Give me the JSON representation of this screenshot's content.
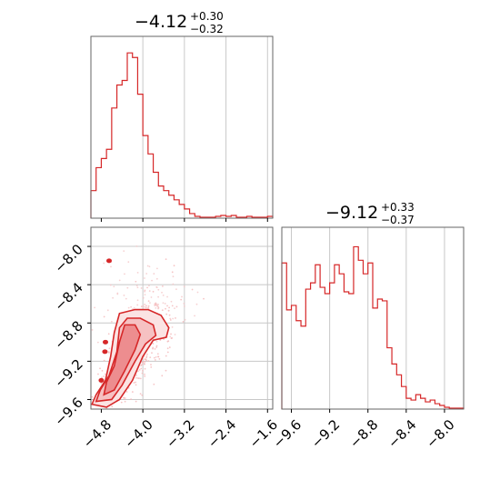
{
  "chart_data": [
    {
      "type": "histogram",
      "panel": "top-left",
      "title": {
        "median": "−4.12",
        "plus": "+0.30",
        "minus": "−0.32"
      },
      "xlim": [
        -5.0,
        -1.5
      ],
      "x": [
        -4.95,
        -4.85,
        -4.75,
        -4.65,
        -4.55,
        -4.45,
        -4.35,
        -4.25,
        -4.15,
        -4.05,
        -3.95,
        -3.85,
        -3.75,
        -3.65,
        -3.55,
        -3.45,
        -3.35,
        -3.25,
        -3.15,
        -3.05,
        -2.95,
        -2.85,
        -2.75,
        -2.65,
        -2.55,
        -2.45,
        -2.35,
        -2.25,
        -2.15,
        -2.05,
        -1.95,
        -1.85,
        -1.75,
        -1.65,
        -1.55
      ],
      "values": [
        30,
        55,
        65,
        75,
        120,
        145,
        150,
        180,
        175,
        135,
        90,
        70,
        50,
        35,
        30,
        25,
        20,
        15,
        10,
        5,
        2,
        1,
        1,
        1,
        2,
        3,
        2,
        3,
        1,
        1,
        2,
        1,
        1,
        1,
        2
      ],
      "grid_x": [
        -4.0,
        -3.2,
        -2.4,
        -1.6
      ]
    },
    {
      "type": "scatter",
      "panel": "bottom-left",
      "xlim": [
        -5.0,
        -1.5
      ],
      "ylim": [
        -9.7,
        -7.8
      ],
      "xticks": [
        "−4.8",
        "−4.0",
        "−3.2",
        "−2.4",
        "−1.6"
      ],
      "xtick_values": [
        -4.8,
        -4.0,
        -3.2,
        -2.4,
        -1.6
      ],
      "yticks": [
        "−8.0",
        "−8.4",
        "−8.8",
        "−9.2",
        "−9.6"
      ],
      "ytick_values": [
        -8.0,
        -8.4,
        -8.8,
        -9.2,
        -9.6
      ],
      "contour_levels": 3,
      "color": "#d62728"
    },
    {
      "type": "histogram",
      "panel": "bottom-right",
      "title": {
        "median": "−9.12",
        "plus": "+0.33",
        "minus": "−0.37"
      },
      "xlim": [
        -9.7,
        -7.8
      ],
      "xticks": [
        "−9.6",
        "−9.2",
        "−8.8",
        "−8.4",
        "−8.0"
      ],
      "xtick_values": [
        -9.6,
        -9.2,
        -8.8,
        -8.4,
        -8.0
      ],
      "x": [
        -9.675,
        -9.625,
        -9.575,
        -9.525,
        -9.475,
        -9.425,
        -9.375,
        -9.325,
        -9.275,
        -9.225,
        -9.175,
        -9.125,
        -9.075,
        -9.025,
        -8.975,
        -8.925,
        -8.875,
        -8.825,
        -8.775,
        -8.725,
        -8.675,
        -8.625,
        -8.575,
        -8.525,
        -8.475,
        -8.425,
        -8.375,
        -8.325,
        -8.275,
        -8.225,
        -8.175,
        -8.125,
        -8.075,
        -8.025,
        -7.975,
        -7.925,
        -7.875,
        -7.825
      ],
      "values": [
        60,
        40,
        35,
        34,
        41,
        60,
        50,
        50,
        38,
        39,
        70,
        60,
        62,
        42,
        37,
        78,
        50,
        57,
        53,
        40,
        52,
        42,
        16,
        7,
        6,
        4,
        4,
        4,
        3,
        2,
        1,
        0,
        0,
        0,
        0,
        0,
        0,
        0
      ],
      "hist_values": [
        162,
        110,
        115,
        98,
        92,
        133,
        140,
        160,
        135,
        128,
        140,
        160,
        150,
        130,
        128,
        180,
        165,
        150,
        162,
        112,
        122,
        120,
        68,
        50,
        38,
        25,
        12,
        10,
        16,
        12,
        8,
        10,
        6,
        4,
        2,
        1,
        1,
        1
      ],
      "grid_x": [
        -9.6,
        -9.2,
        -8.8,
        -8.4,
        -8.0
      ]
    }
  ]
}
